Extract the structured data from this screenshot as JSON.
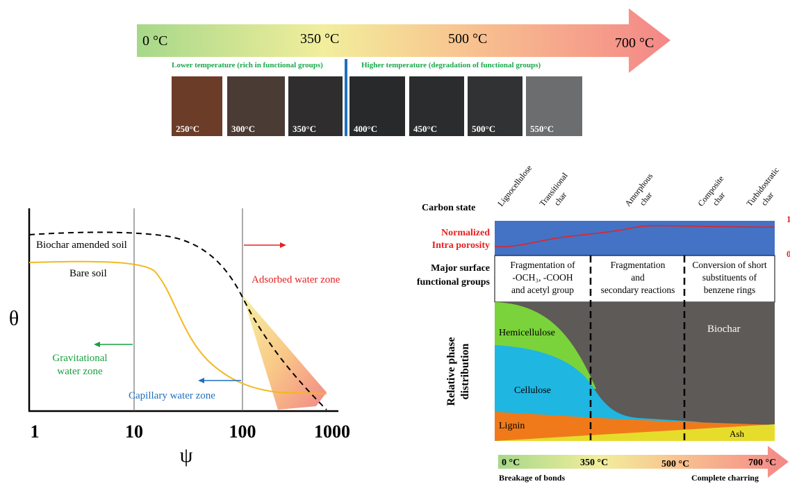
{
  "top_scale": {
    "labels": [
      "0 °C",
      "350 °C",
      "500 °C",
      "700 °C"
    ],
    "lower_note": "Lower temperature (rich in functional groups)",
    "higher_note": "Higher temperature (degradation of functional groups)",
    "photos": [
      "250°C",
      "300°C",
      "350°C",
      "400°C",
      "450°C",
      "500°C",
      "550°C"
    ]
  },
  "water_retention": {
    "y_label": "θ",
    "x_label": "ψ",
    "x_ticks": [
      "1",
      "10",
      "100",
      "1000"
    ],
    "curves": [
      "Biochar amended soil",
      "Bare soil"
    ],
    "adsorbed_zone": "Adsorbed water zone",
    "gravitational_zone": [
      "Gravitational",
      "water zone"
    ],
    "capillary_zone": "Capillary water zone"
  },
  "carbonization": {
    "carbon_state_label": "Carbon state",
    "carbon_states": [
      [
        "Lignocellulose"
      ],
      [
        "Transitional",
        "char"
      ],
      [
        "Amorphous",
        "char"
      ],
      [
        "Composite",
        "char"
      ],
      [
        "Turbidostratic",
        "char"
      ]
    ],
    "porosity_label": [
      "Normalized",
      "Intra porosity"
    ],
    "porosity_max": "1",
    "porosity_min": "0",
    "groups_label": [
      "Major surface",
      "functional groups"
    ],
    "groups": [
      [
        "Fragmentation of",
        "-OCH₃, -COOH",
        "and acetyl group"
      ],
      [
        "Fragmentation",
        "and",
        "secondary reactions"
      ],
      [
        "Conversion of short",
        "substituents of",
        "benzene rings"
      ]
    ],
    "phase_label": [
      "Relative phase",
      "distribution"
    ],
    "phases": [
      "Hemicellulose",
      "Cellulose",
      "Lignin",
      "Ash",
      "Biochar"
    ],
    "scale_labels": [
      "0 °C",
      "350 °C",
      "500 °C",
      "700 °C"
    ],
    "start_note": "Breakage of bonds",
    "end_note": "Complete charring"
  }
}
